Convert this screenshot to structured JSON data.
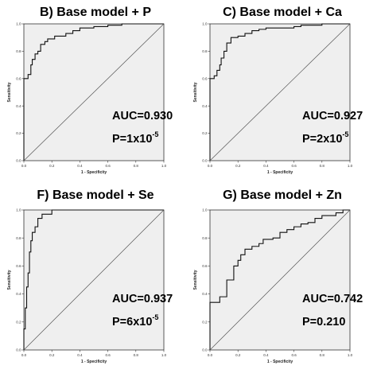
{
  "colors": {
    "plot_background": "#efefef",
    "curve": "#111111",
    "diagonal": "#555555",
    "frame": "#333333"
  },
  "chart_data": [
    {
      "type": "line",
      "title": "B) Base model + P",
      "xlabel": "1 - Specificity",
      "ylabel": "Sensitivity",
      "xlim": [
        0,
        1
      ],
      "ylim": [
        0,
        1
      ],
      "ticks": [
        "0.0",
        "0.2",
        "0.4",
        "0.6",
        "0.8",
        "1.0"
      ],
      "grid": false,
      "annotation": {
        "auc": "AUC=0.930",
        "p_base": "P=1x10",
        "p_exp": "-5"
      },
      "series": [
        {
          "kind": "roc",
          "x": [
            0,
            0,
            0.03,
            0.03,
            0.05,
            0.05,
            0.06,
            0.06,
            0.08,
            0.08,
            0.1,
            0.1,
            0.12,
            0.12,
            0.15,
            0.15,
            0.17,
            0.17,
            0.22,
            0.22,
            0.3,
            0.3,
            0.35,
            0.35,
            0.4,
            0.4,
            0.5,
            0.5,
            0.6,
            0.6,
            0.7,
            0.7,
            1
          ],
          "y": [
            0,
            0.6,
            0.6,
            0.63,
            0.63,
            0.7,
            0.7,
            0.74,
            0.74,
            0.78,
            0.78,
            0.8,
            0.8,
            0.85,
            0.85,
            0.87,
            0.87,
            0.89,
            0.89,
            0.91,
            0.91,
            0.93,
            0.93,
            0.95,
            0.95,
            0.97,
            0.97,
            0.98,
            0.98,
            0.99,
            0.99,
            1,
            1
          ]
        },
        {
          "kind": "reference",
          "x": [
            0,
            1
          ],
          "y": [
            0,
            1
          ]
        }
      ]
    },
    {
      "type": "line",
      "title": "C) Base model + Ca",
      "xlabel": "1 - Specificity",
      "ylabel": "Sensitivity",
      "xlim": [
        0,
        1
      ],
      "ylim": [
        0,
        1
      ],
      "ticks": [
        "0.0",
        "0.2",
        "0.4",
        "0.6",
        "0.8",
        "1.0"
      ],
      "grid": false,
      "annotation": {
        "auc": "AUC=0.927",
        "p_base": "P=2x10",
        "p_exp": "-5"
      },
      "series": [
        {
          "kind": "roc",
          "x": [
            0,
            0,
            0.03,
            0.03,
            0.05,
            0.05,
            0.07,
            0.07,
            0.08,
            0.08,
            0.1,
            0.1,
            0.12,
            0.12,
            0.15,
            0.15,
            0.2,
            0.2,
            0.25,
            0.25,
            0.3,
            0.3,
            0.35,
            0.35,
            0.4,
            0.4,
            0.6,
            0.6,
            0.65,
            0.65,
            0.8,
            0.8,
            1
          ],
          "y": [
            0,
            0.6,
            0.6,
            0.62,
            0.62,
            0.66,
            0.66,
            0.7,
            0.7,
            0.75,
            0.75,
            0.8,
            0.8,
            0.86,
            0.86,
            0.9,
            0.9,
            0.91,
            0.91,
            0.93,
            0.93,
            0.95,
            0.95,
            0.96,
            0.96,
            0.97,
            0.97,
            0.98,
            0.98,
            0.99,
            0.99,
            1,
            1
          ]
        },
        {
          "kind": "reference",
          "x": [
            0,
            1
          ],
          "y": [
            0,
            1
          ]
        }
      ]
    },
    {
      "type": "line",
      "title": "F) Base model + Se",
      "xlabel": "1 - Specificity",
      "ylabel": "Sensitivity",
      "xlim": [
        0,
        1
      ],
      "ylim": [
        0,
        1
      ],
      "ticks": [
        "0.0",
        "0.2",
        "0.4",
        "0.6",
        "0.8",
        "1.0"
      ],
      "grid": false,
      "annotation": {
        "auc": "AUC=0.937",
        "p_base": "P=6x10",
        "p_exp": "-5"
      },
      "series": [
        {
          "kind": "roc",
          "x": [
            0,
            0,
            0.01,
            0.01,
            0.02,
            0.02,
            0.03,
            0.03,
            0.04,
            0.04,
            0.05,
            0.05,
            0.06,
            0.06,
            0.08,
            0.08,
            0.1,
            0.1,
            0.13,
            0.13,
            0.2,
            0.2,
            1
          ],
          "y": [
            0,
            0.15,
            0.15,
            0.3,
            0.3,
            0.45,
            0.45,
            0.55,
            0.55,
            0.7,
            0.7,
            0.78,
            0.78,
            0.84,
            0.84,
            0.88,
            0.88,
            0.94,
            0.94,
            0.97,
            0.97,
            1,
            1
          ]
        },
        {
          "kind": "reference",
          "x": [
            0,
            1
          ],
          "y": [
            0,
            1
          ]
        }
      ]
    },
    {
      "type": "line",
      "title": "G) Base model + Zn",
      "xlabel": "1 - Specificity",
      "ylabel": "Sensitivity",
      "xlim": [
        0,
        1
      ],
      "ylim": [
        0,
        1
      ],
      "ticks": [
        "0.0",
        "0.2",
        "0.4",
        "0.6",
        "0.8",
        "1.0"
      ],
      "grid": false,
      "annotation": {
        "auc": "AUC=0.742",
        "p_base": "P=0.210",
        "p_exp": ""
      },
      "series": [
        {
          "kind": "roc",
          "x": [
            0,
            0,
            0.07,
            0.07,
            0.12,
            0.12,
            0.17,
            0.17,
            0.2,
            0.2,
            0.22,
            0.22,
            0.25,
            0.25,
            0.3,
            0.3,
            0.35,
            0.35,
            0.38,
            0.38,
            0.45,
            0.45,
            0.5,
            0.5,
            0.55,
            0.55,
            0.6,
            0.6,
            0.65,
            0.65,
            0.7,
            0.7,
            0.75,
            0.75,
            0.8,
            0.8,
            0.9,
            0.9,
            0.95,
            0.95,
            1
          ],
          "y": [
            0,
            0.34,
            0.34,
            0.38,
            0.38,
            0.5,
            0.5,
            0.6,
            0.6,
            0.64,
            0.64,
            0.68,
            0.68,
            0.72,
            0.72,
            0.74,
            0.74,
            0.76,
            0.76,
            0.79,
            0.79,
            0.8,
            0.8,
            0.84,
            0.84,
            0.86,
            0.86,
            0.88,
            0.88,
            0.9,
            0.9,
            0.91,
            0.91,
            0.94,
            0.94,
            0.96,
            0.96,
            0.98,
            0.98,
            1,
            1
          ]
        },
        {
          "kind": "reference",
          "x": [
            0,
            1
          ],
          "y": [
            0,
            1
          ]
        }
      ]
    }
  ]
}
